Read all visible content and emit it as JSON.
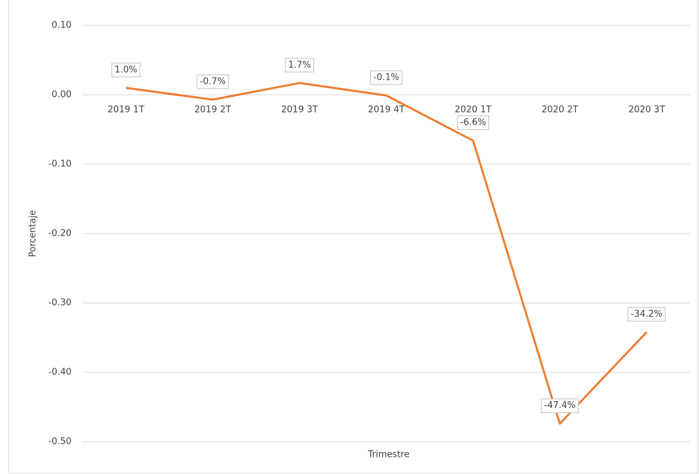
{
  "chart_data": {
    "type": "line",
    "categories": [
      "2019  1T",
      "2019 2T",
      "2019 3T",
      "2019 4T",
      "2020 1T",
      "2020 2T",
      "2020 3T"
    ],
    "series": [
      {
        "name": "Porcentaje",
        "color": "#ed7d31",
        "values": [
          0.01,
          -0.007,
          0.017,
          -0.001,
          -0.066,
          -0.474,
          -0.342
        ],
        "value_labels": [
          "1.0%",
          "-0.7%",
          "1.7%",
          "-0.1%",
          "-6.6%",
          "-47.4%",
          "-34.2%"
        ]
      }
    ],
    "ylim": [
      -0.5,
      0.1
    ],
    "yticks": [
      {
        "value": 0.1,
        "label": "0.10"
      },
      {
        "value": 0,
        "label": "0.00"
      },
      {
        "value": -0.1,
        "label": "-0.10"
      },
      {
        "value": -0.2,
        "label": "-0.20"
      },
      {
        "value": -0.3,
        "label": "-0.30"
      },
      {
        "value": -0.4,
        "label": "-0.40"
      },
      {
        "value": -0.5,
        "label": "-0.50"
      }
    ],
    "ylabel": "Porcentaje",
    "xlabel": "Trimestre",
    "grid": true
  }
}
